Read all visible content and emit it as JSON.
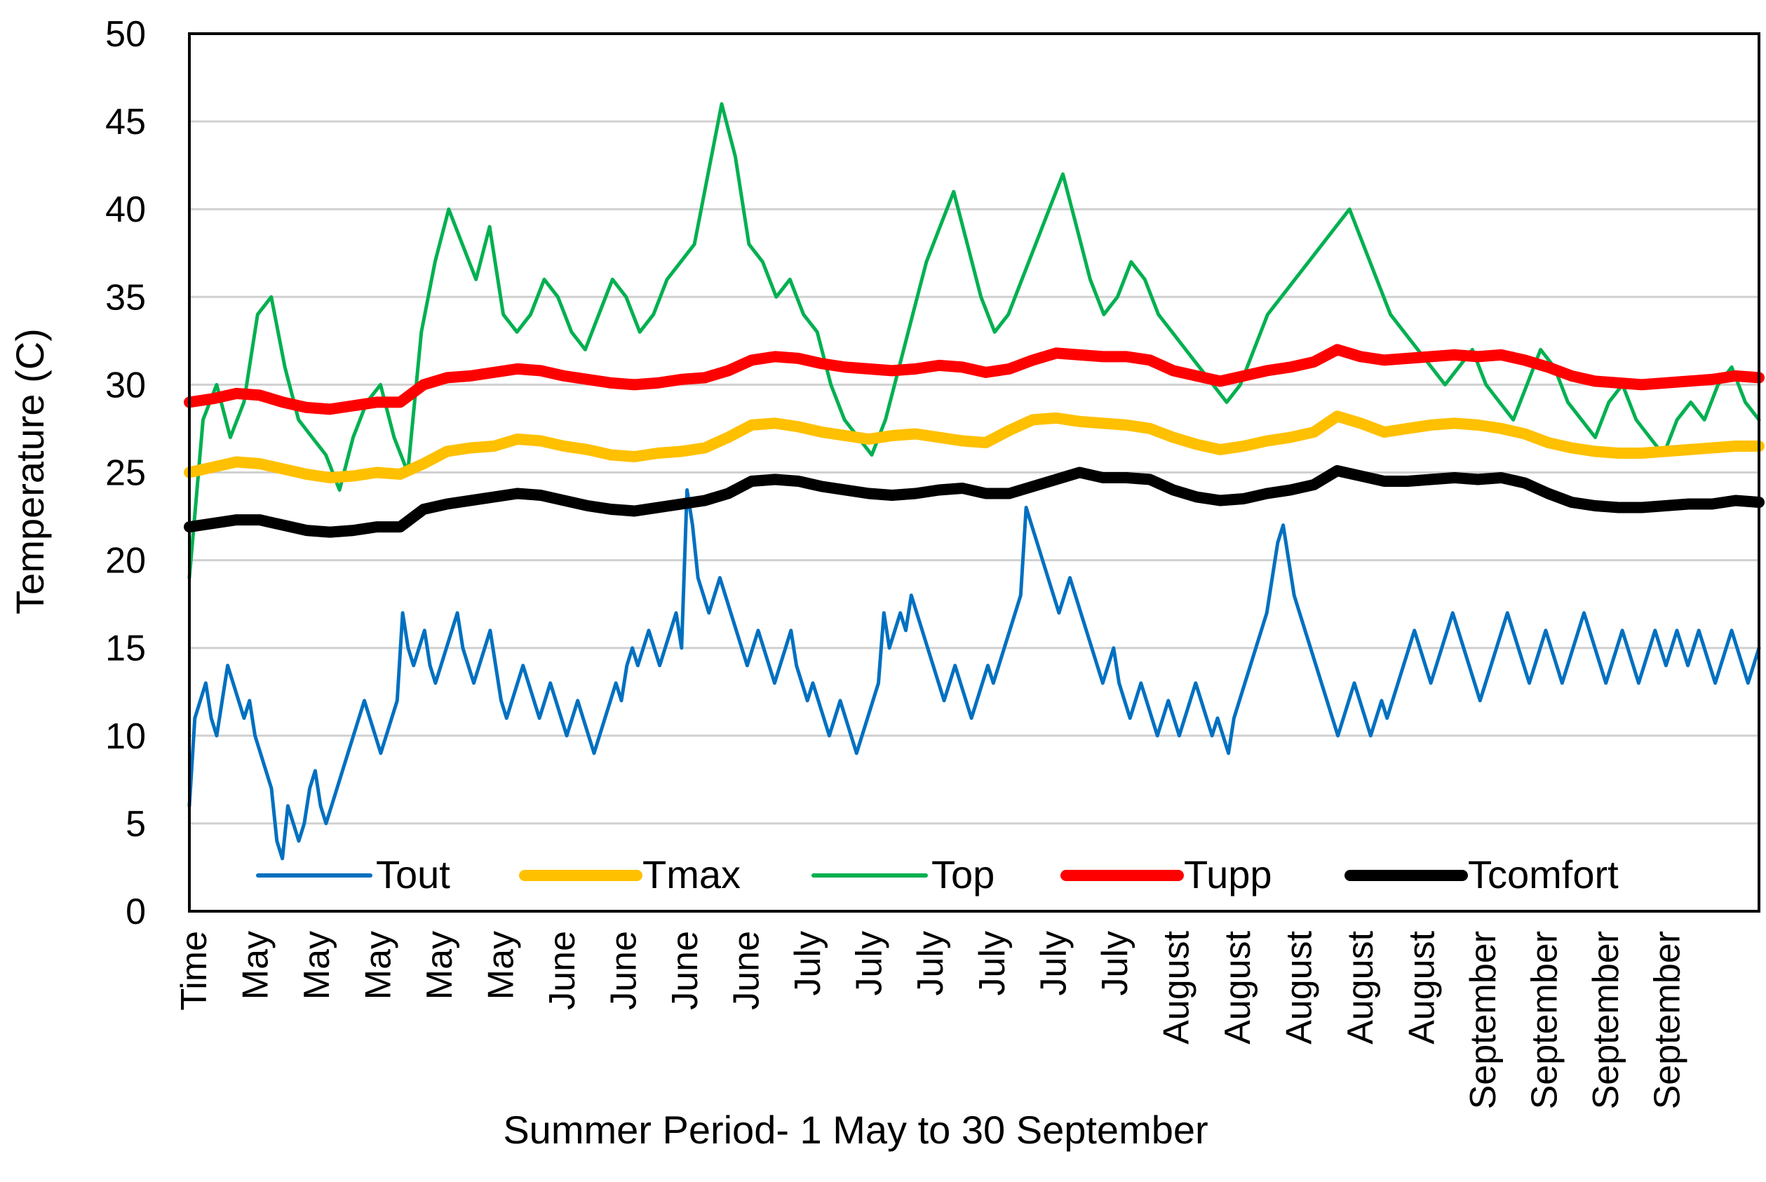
{
  "chart_data": {
    "type": "line",
    "title": "",
    "xlabel": "Summer Period- 1 May to 30 September",
    "ylabel": "Temperature (C)",
    "ylim": [
      0,
      50
    ],
    "yticks": [
      0,
      5,
      10,
      15,
      20,
      25,
      30,
      35,
      40,
      45,
      50
    ],
    "grid": true,
    "legend_position": "bottom-inside",
    "x_tick_labels": [
      "Time",
      "May",
      "May",
      "May",
      "May",
      "May",
      "June",
      "June",
      "June",
      "June",
      "July",
      "July",
      "July",
      "July",
      "July",
      "July",
      "August",
      "August",
      "August",
      "August",
      "August",
      "September",
      "September",
      "September",
      "September"
    ],
    "series": [
      {
        "name": "Tout",
        "color": "#0070C0",
        "style": "thin",
        "values": [
          6,
          11,
          12,
          13,
          11,
          10,
          12,
          14,
          13,
          12,
          11,
          12,
          10,
          9,
          8,
          7,
          4,
          3,
          6,
          5,
          4,
          5,
          7,
          8,
          6,
          5,
          6,
          7,
          8,
          9,
          10,
          11,
          12,
          11,
          10,
          9,
          10,
          11,
          12,
          17,
          15,
          14,
          15,
          16,
          14,
          13,
          14,
          15,
          16,
          17,
          15,
          14,
          13,
          14,
          15,
          16,
          14,
          12,
          11,
          12,
          13,
          14,
          13,
          12,
          11,
          12,
          13,
          12,
          11,
          10,
          11,
          12,
          11,
          10,
          9,
          10,
          11,
          12,
          13,
          12,
          14,
          15,
          14,
          15,
          16,
          15,
          14,
          15,
          16,
          17,
          15,
          24,
          22,
          19,
          18,
          17,
          18,
          19,
          18,
          17,
          16,
          15,
          14,
          15,
          16,
          15,
          14,
          13,
          14,
          15,
          16,
          14,
          13,
          12,
          13,
          12,
          11,
          10,
          11,
          12,
          11,
          10,
          9,
          10,
          11,
          12,
          13,
          17,
          15,
          16,
          17,
          16,
          18,
          17,
          16,
          15,
          14,
          13,
          12,
          13,
          14,
          13,
          12,
          11,
          12,
          13,
          14,
          13,
          14,
          15,
          16,
          17,
          18,
          23,
          22,
          21,
          20,
          19,
          18,
          17,
          18,
          19,
          18,
          17,
          16,
          15,
          14,
          13,
          14,
          15,
          13,
          12,
          11,
          12,
          13,
          12,
          11,
          10,
          11,
          12,
          11,
          10,
          11,
          12,
          13,
          12,
          11,
          10,
          11,
          10,
          9,
          11,
          12,
          13,
          14,
          15,
          16,
          17,
          19,
          21,
          22,
          20,
          18,
          17,
          16,
          15,
          14,
          13,
          12,
          11,
          10,
          11,
          12,
          13,
          12,
          11,
          10,
          11,
          12,
          11,
          12,
          13,
          14,
          15,
          16,
          15,
          14,
          13,
          14,
          15,
          16,
          17,
          16,
          15,
          14,
          13,
          12,
          13,
          14,
          15,
          16,
          17,
          16,
          15,
          14,
          13,
          14,
          15,
          16,
          15,
          14,
          13,
          14,
          15,
          16,
          17,
          16,
          15,
          14,
          13,
          14,
          15,
          16,
          15,
          14,
          13,
          14,
          15,
          16,
          15,
          14,
          15,
          16,
          15,
          14,
          15,
          16,
          15,
          14,
          13,
          14,
          15,
          16,
          15,
          14,
          13,
          14,
          15
        ]
      },
      {
        "name": "Tmax",
        "color": "#FFC000",
        "style": "thick",
        "values": [
          25,
          25.3,
          25.6,
          25.5,
          25.2,
          24.9,
          24.7,
          24.8,
          25,
          24.9,
          25.5,
          26.2,
          26.4,
          26.5,
          26.9,
          26.8,
          26.5,
          26.3,
          26,
          25.9,
          26.1,
          26.2,
          26.4,
          27,
          27.7,
          27.8,
          27.6,
          27.3,
          27.1,
          26.9,
          27.1,
          27.2,
          27,
          26.8,
          26.7,
          27.4,
          28,
          28.1,
          27.9,
          27.8,
          27.7,
          27.5,
          27,
          26.6,
          26.3,
          26.5,
          26.8,
          27,
          27.3,
          28.2,
          27.8,
          27.3,
          27.5,
          27.7,
          27.8,
          27.7,
          27.5,
          27.2,
          26.7,
          26.4,
          26.2,
          26.1,
          26.1,
          26.2,
          26.3,
          26.4,
          26.5,
          26.5
        ]
      },
      {
        "name": "Top",
        "color": "#00B050",
        "style": "thin",
        "values": [
          19,
          28,
          30,
          27,
          29,
          34,
          35,
          31,
          28,
          27,
          26,
          24,
          27,
          29,
          30,
          27,
          25,
          33,
          37,
          40,
          38,
          36,
          39,
          34,
          33,
          34,
          36,
          35,
          33,
          32,
          34,
          36,
          35,
          33,
          34,
          36,
          37,
          38,
          42,
          46,
          43,
          38,
          37,
          35,
          36,
          34,
          33,
          30,
          28,
          27,
          26,
          28,
          31,
          34,
          37,
          39,
          41,
          38,
          35,
          33,
          34,
          36,
          38,
          40,
          42,
          39,
          36,
          34,
          35,
          37,
          36,
          34,
          33,
          32,
          31,
          30,
          29,
          30,
          32,
          34,
          35,
          36,
          37,
          38,
          39,
          40,
          38,
          36,
          34,
          33,
          32,
          31,
          30,
          31,
          32,
          30,
          29,
          28,
          30,
          32,
          31,
          29,
          28,
          27,
          29,
          30,
          28,
          27,
          26,
          28,
          29,
          28,
          30,
          31,
          29,
          28
        ]
      },
      {
        "name": "Tupp",
        "color": "#FF0000",
        "style": "thick",
        "values": [
          29,
          29.2,
          29.5,
          29.4,
          29,
          28.7,
          28.6,
          28.8,
          29,
          29,
          30,
          30.4,
          30.5,
          30.7,
          30.9,
          30.8,
          30.5,
          30.3,
          30.1,
          30,
          30.1,
          30.3,
          30.4,
          30.8,
          31.4,
          31.6,
          31.5,
          31.2,
          31,
          30.9,
          30.8,
          30.9,
          31.1,
          31,
          30.7,
          30.9,
          31.4,
          31.8,
          31.7,
          31.6,
          31.6,
          31.4,
          30.8,
          30.5,
          30.2,
          30.5,
          30.8,
          31,
          31.3,
          32,
          31.6,
          31.4,
          31.5,
          31.6,
          31.7,
          31.6,
          31.7,
          31.4,
          31,
          30.5,
          30.2,
          30.1,
          30,
          30.1,
          30.2,
          30.3,
          30.5,
          30.4
        ]
      },
      {
        "name": "Tcomfort",
        "color": "#000000",
        "style": "thick",
        "values": [
          21.9,
          22.1,
          22.3,
          22.3,
          22,
          21.7,
          21.6,
          21.7,
          21.9,
          21.9,
          22.9,
          23.2,
          23.4,
          23.6,
          23.8,
          23.7,
          23.4,
          23.1,
          22.9,
          22.8,
          23,
          23.2,
          23.4,
          23.8,
          24.5,
          24.6,
          24.5,
          24.2,
          24,
          23.8,
          23.7,
          23.8,
          24,
          24.1,
          23.8,
          23.8,
          24.2,
          24.6,
          25,
          24.7,
          24.7,
          24.6,
          24,
          23.6,
          23.4,
          23.5,
          23.8,
          24,
          24.3,
          25.1,
          24.8,
          24.5,
          24.5,
          24.6,
          24.7,
          24.6,
          24.7,
          24.4,
          23.8,
          23.3,
          23.1,
          23,
          23,
          23.1,
          23.2,
          23.2,
          23.4,
          23.3
        ]
      }
    ]
  }
}
